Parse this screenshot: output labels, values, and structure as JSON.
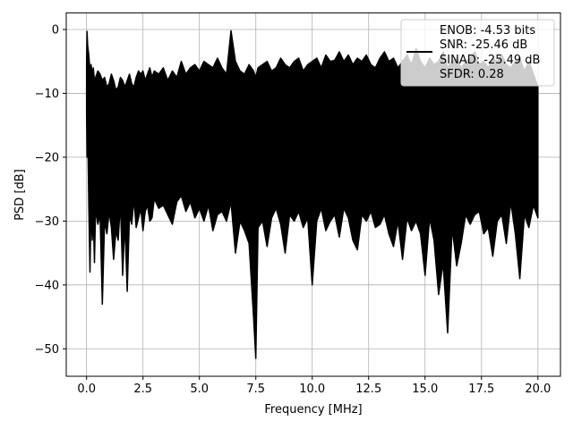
{
  "chart_data": {
    "type": "line",
    "title": "",
    "xlabel": "Frequency [MHz]",
    "ylabel": "PSD [dB]",
    "xlim": [
      -0.9,
      21.0
    ],
    "ylim": [
      -54.3,
      2.6
    ],
    "xticks": [
      0.0,
      2.5,
      5.0,
      7.5,
      10.0,
      12.5,
      15.0,
      17.5,
      20.0
    ],
    "xtick_labels": [
      "0.0",
      "2.5",
      "5.0",
      "7.5",
      "10.0",
      "12.5",
      "15.0",
      "17.5",
      "20.0"
    ],
    "yticks": [
      0,
      -10,
      -20,
      -30,
      -40,
      -50
    ],
    "ytick_labels": [
      "0",
      "−10",
      "−20",
      "−30",
      "−40",
      "−50"
    ],
    "grid": true,
    "legend": {
      "placement": "top-right",
      "entries": [
        "ENOB: -4.53 bits",
        "SNR: -25.46 dB",
        "SINAD: -25.49 dB",
        "SFDR: 0.28"
      ]
    },
    "series": [
      {
        "color": "#000000",
        "x": [
          0.0,
          0.02,
          0.05,
          0.1,
          0.15,
          0.2,
          0.25,
          0.3,
          0.35,
          0.4,
          0.5,
          0.6,
          0.7,
          0.8,
          0.9,
          1.0,
          1.1,
          1.2,
          1.3,
          1.4,
          1.5,
          1.6,
          1.7,
          1.8,
          1.9,
          2.0,
          2.1,
          2.2,
          2.3,
          2.4,
          2.5,
          2.6,
          2.7,
          2.8,
          2.9,
          3.0,
          3.2,
          3.4,
          3.6,
          3.8,
          4.0,
          4.2,
          4.4,
          4.6,
          4.8,
          5.0,
          5.2,
          5.4,
          5.6,
          5.8,
          6.0,
          6.2,
          6.4,
          6.6,
          6.8,
          7.0,
          7.2,
          7.4,
          7.5,
          7.6,
          7.8,
          8.0,
          8.2,
          8.4,
          8.6,
          8.8,
          9.0,
          9.2,
          9.4,
          9.6,
          9.8,
          10.0,
          10.2,
          10.4,
          10.6,
          10.8,
          11.0,
          11.2,
          11.4,
          11.6,
          11.8,
          12.0,
          12.2,
          12.4,
          12.6,
          12.8,
          13.0,
          13.2,
          13.4,
          13.6,
          13.8,
          14.0,
          14.2,
          14.4,
          14.6,
          14.8,
          15.0,
          15.2,
          15.4,
          15.6,
          15.8,
          16.0,
          16.2,
          16.4,
          16.6,
          16.8,
          17.0,
          17.2,
          17.4,
          17.6,
          17.8,
          18.0,
          18.2,
          18.4,
          18.6,
          18.8,
          19.0,
          19.2,
          19.4,
          19.6,
          19.8,
          20.0
        ],
        "upper": [
          -5.0,
          -0.3,
          -2.5,
          -4.0,
          -6.5,
          -5.5,
          -7.0,
          -6.0,
          -8.0,
          -7.5,
          -6.5,
          -7.0,
          -8.0,
          -7.5,
          -9.0,
          -8.5,
          -7.0,
          -8.0,
          -9.5,
          -9.0,
          -7.5,
          -8.0,
          -9.0,
          -8.0,
          -7.0,
          -8.5,
          -9.0,
          -7.5,
          -6.5,
          -7.0,
          -6.5,
          -8.0,
          -7.0,
          -6.0,
          -7.5,
          -6.5,
          -7.0,
          -6.0,
          -8.0,
          -6.5,
          -7.5,
          -5.0,
          -7.0,
          -6.0,
          -5.5,
          -6.5,
          -5.0,
          -5.5,
          -6.0,
          -4.5,
          -6.0,
          -7.0,
          -0.2,
          -5.0,
          -6.5,
          -7.0,
          -5.5,
          -6.5,
          -7.5,
          -6.0,
          -5.5,
          -5.0,
          -6.5,
          -6.0,
          -4.5,
          -5.5,
          -6.0,
          -5.0,
          -4.5,
          -6.5,
          -5.5,
          -5.0,
          -4.5,
          -6.0,
          -4.0,
          -5.0,
          -4.8,
          -3.5,
          -5.0,
          -4.0,
          -5.5,
          -4.5,
          -5.0,
          -4.0,
          -5.5,
          -6.0,
          -4.5,
          -3.5,
          -5.0,
          -4.5,
          -6.0,
          -5.0,
          -4.0,
          -5.5,
          -3.0,
          -5.0,
          -6.0,
          -4.5,
          -5.5,
          -5.0,
          -3.5,
          -6.0,
          -5.0,
          -4.5,
          -6.0,
          -5.0,
          -4.5,
          -3.5,
          -5.5,
          -5.0,
          -6.0,
          -4.5,
          -5.0,
          -4.0,
          -5.5,
          -6.0,
          -5.0,
          -4.5,
          -6.5,
          -5.0,
          -7.0,
          -9.0
        ],
        "lower": [
          -13.0,
          -20.0,
          -15.0,
          -27.5,
          -38.0,
          -27.0,
          -33.0,
          -29.0,
          -36.5,
          -28.0,
          -30.5,
          -29.0,
          -43.0,
          -30.0,
          -32.0,
          -28.5,
          -31.0,
          -36.0,
          -31.5,
          -33.0,
          -27.0,
          -38.5,
          -30.0,
          -41.0,
          -29.0,
          -30.5,
          -26.5,
          -31.0,
          -29.5,
          -28.0,
          -31.5,
          -28.5,
          -27.5,
          -30.0,
          -29.5,
          -26.5,
          -28.0,
          -27.5,
          -29.0,
          -30.5,
          -27.0,
          -26.0,
          -28.5,
          -27.0,
          -29.5,
          -28.0,
          -30.0,
          -27.5,
          -31.5,
          -29.0,
          -28.5,
          -30.0,
          -27.0,
          -35.0,
          -30.0,
          -31.5,
          -33.5,
          -45.0,
          -51.5,
          -31.0,
          -30.0,
          -34.0,
          -29.5,
          -28.0,
          -30.5,
          -35.0,
          -29.0,
          -30.0,
          -28.5,
          -31.0,
          -29.5,
          -40.0,
          -30.0,
          -28.0,
          -31.5,
          -30.0,
          -29.0,
          -32.5,
          -28.0,
          -29.5,
          -33.0,
          -34.5,
          -29.0,
          -30.0,
          -28.5,
          -31.0,
          -30.5,
          -29.0,
          -32.0,
          -34.0,
          -30.0,
          -36.0,
          -29.5,
          -31.5,
          -30.0,
          -32.0,
          -38.5,
          -29.5,
          -33.0,
          -41.5,
          -36.5,
          -47.5,
          -31.0,
          -37.0,
          -33.5,
          -29.0,
          -30.5,
          -29.0,
          -28.5,
          -32.0,
          -31.0,
          -35.5,
          -30.0,
          -29.0,
          -33.5,
          -27.0,
          -32.0,
          -39.0,
          -29.0,
          -31.0,
          -27.5,
          -29.5
        ]
      }
    ]
  }
}
